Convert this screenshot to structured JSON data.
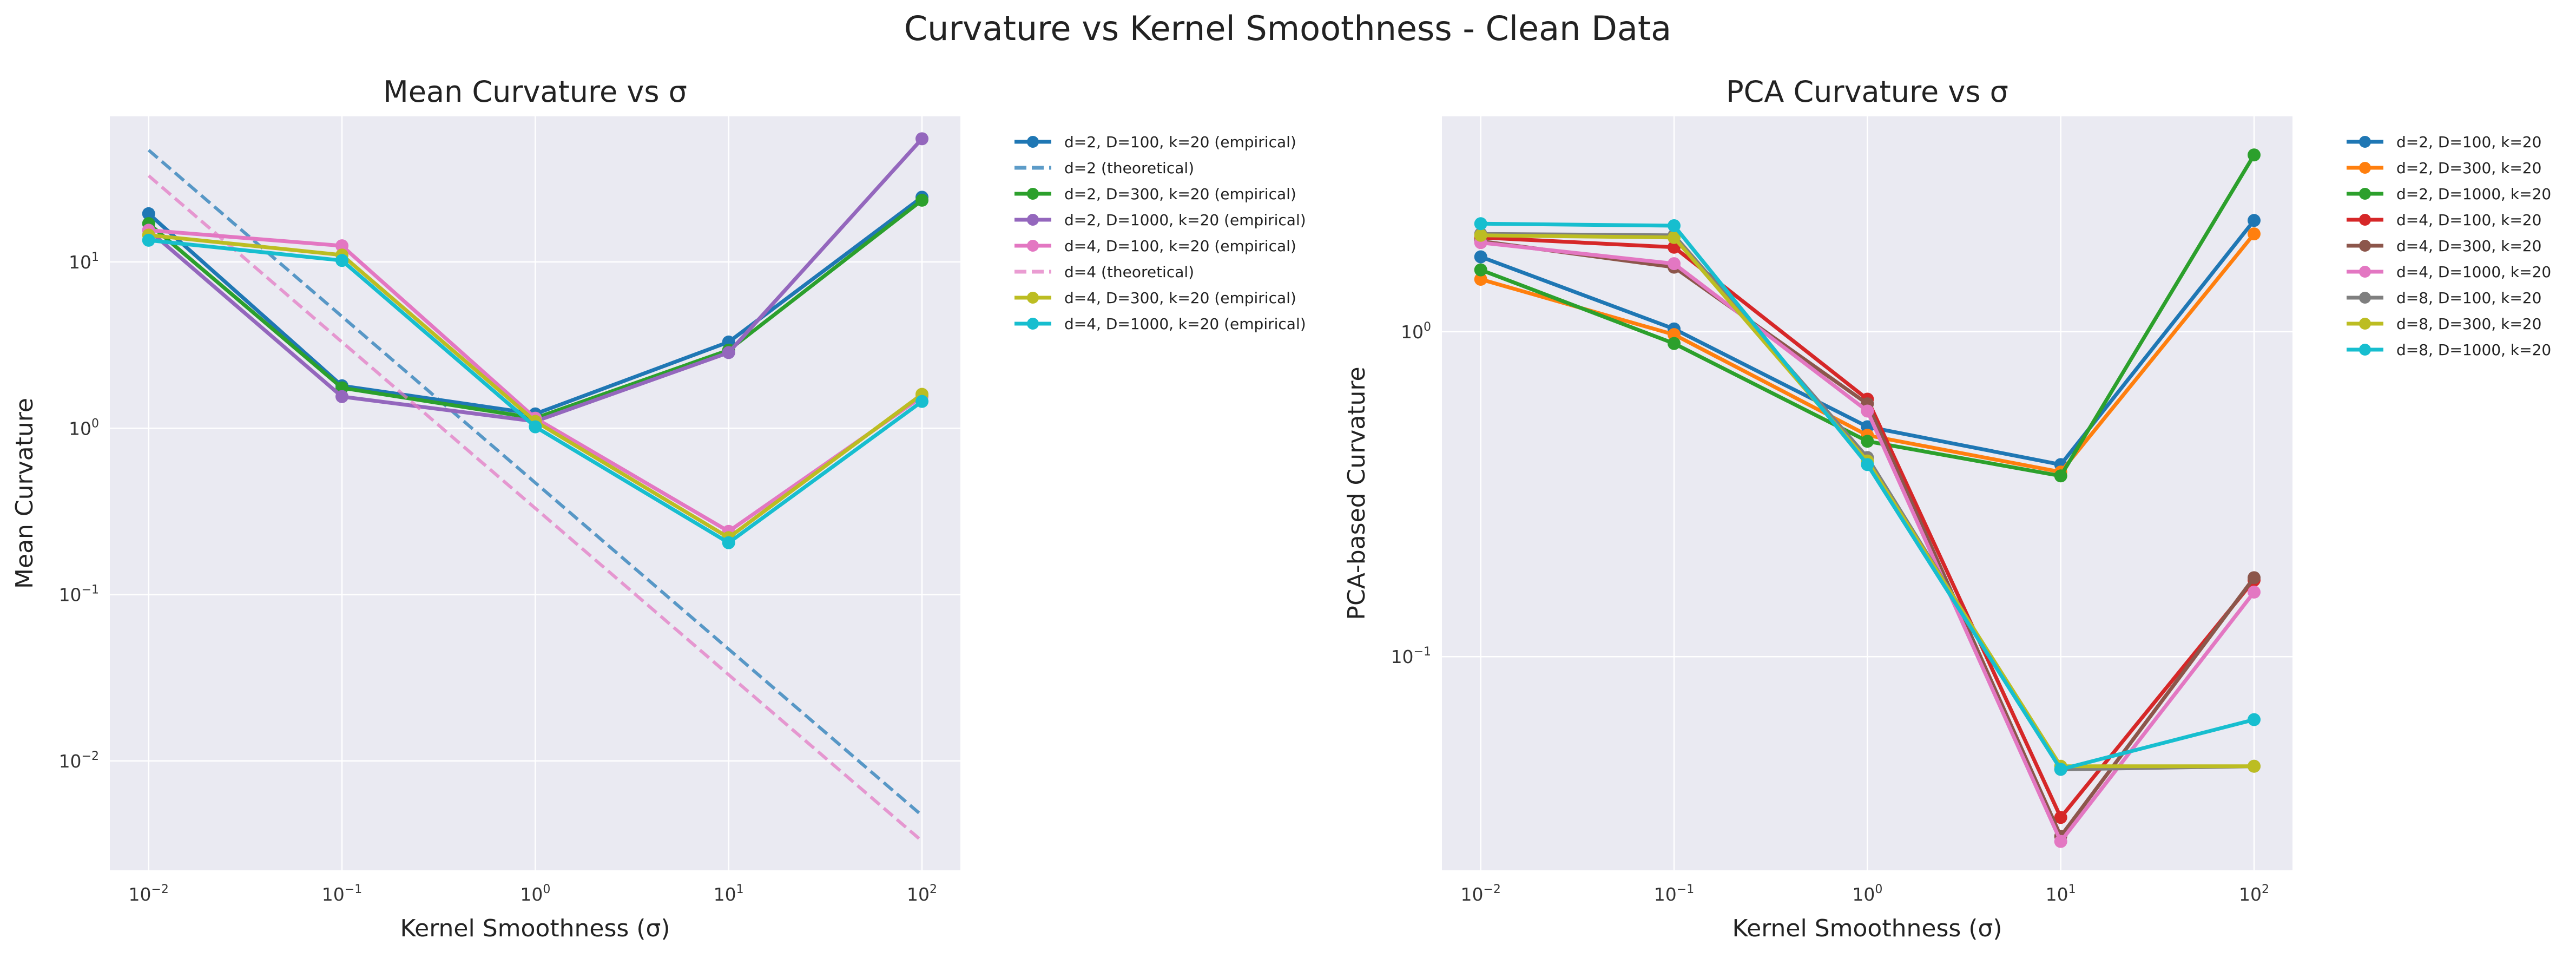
{
  "figure": {
    "title": "Curvature vs Kernel Smoothness - Clean Data"
  },
  "chart_data": [
    {
      "type": "line",
      "title": "Mean Curvature vs σ",
      "xlabel": "Kernel Smoothness (σ)",
      "ylabel": "Mean Curvature",
      "xscale": "log",
      "yscale": "log",
      "xlim": [
        0.0063,
        158
      ],
      "ylim": [
        0.0022,
        75
      ],
      "xticks": [
        {
          "value": 0.01,
          "base": "10",
          "exp": "−2"
        },
        {
          "value": 0.1,
          "base": "10",
          "exp": "−1"
        },
        {
          "value": 1,
          "base": "10",
          "exp": "0"
        },
        {
          "value": 10,
          "base": "10",
          "exp": "1"
        },
        {
          "value": 100,
          "base": "10",
          "exp": "2"
        }
      ],
      "yticks": [
        {
          "value": 0.01,
          "base": "10",
          "exp": "−2"
        },
        {
          "value": 0.1,
          "base": "10",
          "exp": "−1"
        },
        {
          "value": 1,
          "base": "10",
          "exp": "0"
        },
        {
          "value": 10,
          "base": "10",
          "exp": "1"
        }
      ],
      "grid": true,
      "legend": "outside-right",
      "x": [
        0.01,
        0.1,
        1,
        10,
        100
      ],
      "series": [
        {
          "name": "d=2, D=100, k=20 (empirical)",
          "color": "#1f77b4",
          "style": "solid",
          "values": [
            19.5,
            1.8,
            1.22,
            3.3,
            24.5
          ]
        },
        {
          "name": "d=2 (theoretical)",
          "color": "#1f77b4",
          "style": "dashed",
          "values": [
            47,
            4.7,
            0.47,
            0.047,
            0.0047
          ]
        },
        {
          "name": "d=2, D=300, k=20 (empirical)",
          "color": "#2ca02c",
          "style": "solid",
          "values": [
            17,
            1.75,
            1.15,
            2.95,
            23.5
          ]
        },
        {
          "name": "d=2, D=1000, k=20 (empirical)",
          "color": "#9467bd",
          "style": "solid",
          "values": [
            15.5,
            1.55,
            1.1,
            2.85,
            55
          ]
        },
        {
          "name": "d=4, D=100, k=20 (empirical)",
          "color": "#e377c2",
          "style": "solid",
          "values": [
            15.5,
            12.5,
            1.15,
            0.24,
            1.55
          ]
        },
        {
          "name": "d=4 (theoretical)",
          "color": "#e377c2",
          "style": "dashed",
          "values": [
            33,
            3.3,
            0.33,
            0.033,
            0.0033
          ]
        },
        {
          "name": "d=4, D=300, k=20 (empirical)",
          "color": "#bcbd22",
          "style": "solid",
          "values": [
            14.5,
            11,
            1.1,
            0.22,
            1.6
          ]
        },
        {
          "name": "d=4, D=1000, k=20 (empirical)",
          "color": "#17becf",
          "style": "solid",
          "values": [
            13.5,
            10.2,
            1.02,
            0.205,
            1.45
          ]
        }
      ]
    },
    {
      "type": "line",
      "title": "PCA Curvature vs σ",
      "xlabel": "Kernel Smoothness (σ)",
      "ylabel": "PCA-based Curvature",
      "xscale": "log",
      "yscale": "log",
      "xlim": [
        0.0063,
        158
      ],
      "ylim": [
        0.022,
        4.6
      ],
      "xticks": [
        {
          "value": 0.01,
          "base": "10",
          "exp": "−2"
        },
        {
          "value": 0.1,
          "base": "10",
          "exp": "−1"
        },
        {
          "value": 1,
          "base": "10",
          "exp": "0"
        },
        {
          "value": 10,
          "base": "10",
          "exp": "1"
        },
        {
          "value": 100,
          "base": "10",
          "exp": "2"
        }
      ],
      "yticks": [
        {
          "value": 0.1,
          "base": "10",
          "exp": "−1"
        },
        {
          "value": 1,
          "base": "10",
          "exp": "0"
        }
      ],
      "grid": true,
      "legend": "outside-right",
      "x": [
        0.01,
        0.1,
        1,
        10,
        100
      ],
      "series": [
        {
          "name": "d=2, D=100, k=20",
          "color": "#1f77b4",
          "style": "solid",
          "values": [
            1.7,
            1.02,
            0.51,
            0.39,
            2.2
          ]
        },
        {
          "name": "d=2, D=300, k=20",
          "color": "#ff7f0e",
          "style": "solid",
          "values": [
            1.45,
            0.98,
            0.48,
            0.37,
            2.0
          ]
        },
        {
          "name": "d=2, D=1000, k=20",
          "color": "#2ca02c",
          "style": "solid",
          "values": [
            1.55,
            0.92,
            0.46,
            0.36,
            3.5
          ]
        },
        {
          "name": "d=4, D=100, k=20",
          "color": "#d62728",
          "style": "solid",
          "values": [
            1.95,
            1.82,
            0.62,
            0.032,
            0.172
          ]
        },
        {
          "name": "d=4, D=300, k=20",
          "color": "#8c564b",
          "style": "solid",
          "values": [
            1.9,
            1.58,
            0.6,
            0.028,
            0.175
          ]
        },
        {
          "name": "d=4, D=1000, k=20",
          "color": "#e377c2",
          "style": "solid",
          "values": [
            1.88,
            1.62,
            0.57,
            0.027,
            0.158
          ]
        },
        {
          "name": "d=8, D=100, k=20",
          "color": "#7f7f7f",
          "style": "solid",
          "values": [
            2.0,
            1.98,
            0.41,
            0.045,
            0.046
          ]
        },
        {
          "name": "d=8, D=300, k=20",
          "color": "#bcbd22",
          "style": "solid",
          "values": [
            1.98,
            1.95,
            0.4,
            0.046,
            0.046
          ]
        },
        {
          "name": "d=8, D=1000, k=20",
          "color": "#17becf",
          "style": "solid",
          "values": [
            2.15,
            2.12,
            0.39,
            0.045,
            0.064
          ]
        }
      ]
    }
  ]
}
